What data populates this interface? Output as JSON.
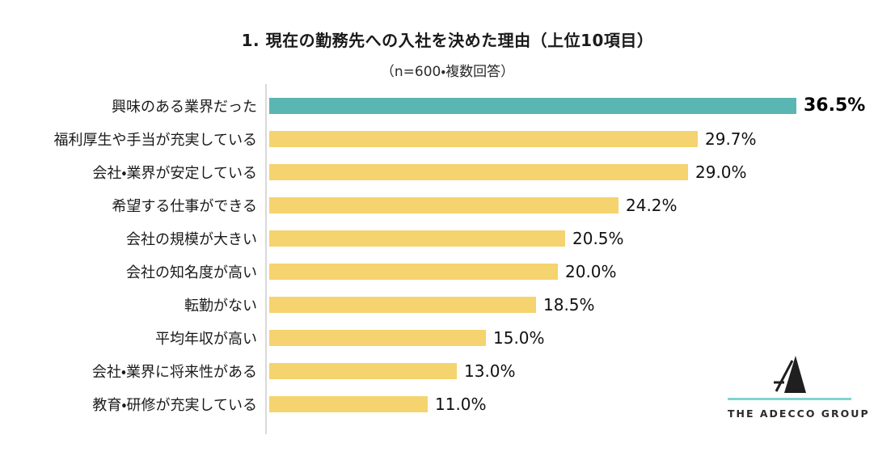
{
  "title": "1. 現在の勤務先への入社を決めた理由（上位10項目）",
  "subtitle": "（n=600・複数回答）",
  "chart_data": {
    "type": "bar",
    "orientation": "horizontal",
    "title": "1. 現在の勤務先への入社を決めた理由（上位10項目）",
    "subtitle": "（n=600・複数回答）",
    "categories": [
      "興味のある業界だった",
      "福利厚生や手当が充実している",
      "会社・業界が安定している",
      "希望する仕事ができる",
      "会社の規模が大きい",
      "会社の知名度が高い",
      "転勤がない",
      "平均年収が高い",
      "会社・業界に将来性がある",
      "教育・研修が充実している"
    ],
    "values": [
      36.5,
      29.7,
      29.0,
      24.2,
      20.5,
      20.0,
      18.5,
      15.0,
      13.0,
      11.0
    ],
    "value_labels": [
      "36.5%",
      "29.7%",
      "29.0%",
      "24.2%",
      "20.5%",
      "20.0%",
      "18.5%",
      "15.0%",
      "13.0%",
      "11.0%"
    ],
    "highlight_index": 0,
    "highlight_color": "#5ab6b2",
    "bar_color": "#f5d36e",
    "axis_color": "#d9d9d9",
    "xlim": [
      0,
      40
    ],
    "grid": false,
    "legend": false
  },
  "logo": {
    "text": "THE ADECCO GROUP",
    "mark": "adecco-a-icon",
    "accent_color": "#7fd6ce",
    "mark_color": "#1f1f1f"
  }
}
